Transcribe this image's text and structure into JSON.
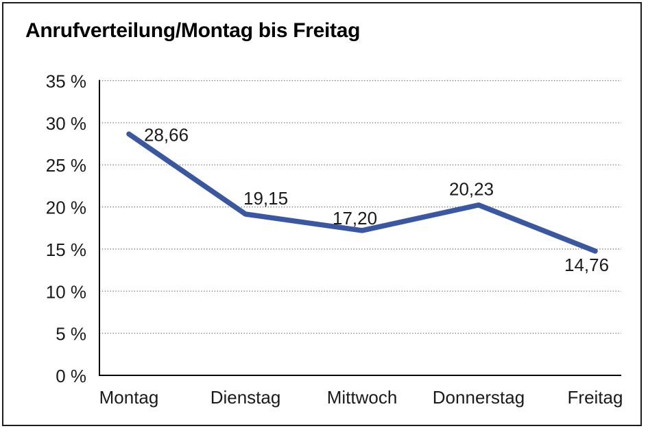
{
  "chart_data": {
    "type": "line",
    "title": "Anrufverteilung/Montag bis Freitag",
    "categories": [
      "Montag",
      "Dienstag",
      "Mittwoch",
      "Donnerstag",
      "Freitag"
    ],
    "values": [
      28.66,
      19.15,
      17.2,
      20.23,
      14.76
    ],
    "value_labels": [
      "28,66",
      "19,15",
      "17,20",
      "20,23",
      "14,76"
    ],
    "xlabel": "",
    "ylabel": "",
    "ylim": [
      0,
      35
    ],
    "y_tick_step": 5,
    "y_tick_labels": [
      "0 %",
      "5 %",
      "10 %",
      "15 %",
      "20 %",
      "25 %",
      "30 %",
      "35 %"
    ],
    "grid": "horizontal-dotted",
    "legend": "none",
    "colors": {
      "line": "#3a57a2",
      "grid": "#6e6e6e",
      "axis": "#000000",
      "text": "#1a1a1a",
      "frame": "#1c1c1c",
      "background": "#ffffff"
    }
  }
}
